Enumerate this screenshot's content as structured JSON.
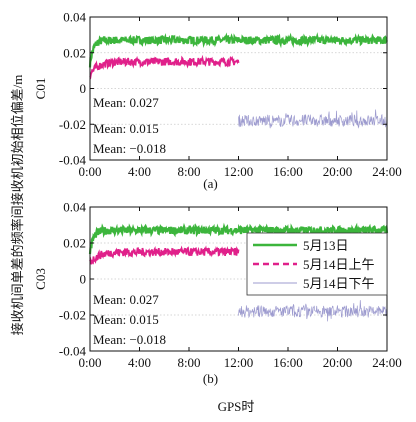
{
  "figure": {
    "shared_ylabel": "接收机间单差的频率间接收机初始相位偏差/m",
    "shared_xlabel": "GPS时"
  },
  "chart_data": [
    {
      "type": "line",
      "panel_label": "(a)",
      "ylabel": "C01",
      "xlabel": "",
      "x_ticks": [
        "0:00",
        "4:00",
        "8:00",
        "12:00",
        "16:00",
        "20:00",
        "24:00"
      ],
      "y_ticks": [
        "0.04",
        "0.02",
        "0",
        "-0.02",
        "-0.04"
      ],
      "xlim_hours": [
        0,
        24
      ],
      "ylim": [
        -0.04,
        0.04
      ],
      "grid": "horizontal-dotted",
      "annotations": [
        "Mean: 0.027",
        "Mean: 0.015",
        "Mean: −0.018"
      ],
      "series": [
        {
          "name": "5月13日",
          "color": "#3cb53c",
          "x_range_hours": [
            0,
            24
          ],
          "mean": 0.027,
          "initial": 0.014,
          "converge_hours": 0.6
        },
        {
          "name": "5月14日上午",
          "color": "#e0208a",
          "x_range_hours": [
            0,
            12
          ],
          "mean": 0.015,
          "initial": 0.008,
          "converge_hours": 1.5
        },
        {
          "name": "5月14日下午",
          "color": "#9d9bcf",
          "x_range_hours": [
            12,
            24
          ],
          "mean": -0.018,
          "initial": -0.018,
          "converge_hours": 0
        }
      ]
    },
    {
      "type": "line",
      "panel_label": "(b)",
      "ylabel": "C03",
      "xlabel": "GPS时",
      "x_ticks": [
        "0:00",
        "4:00",
        "8:00",
        "12:00",
        "16:00",
        "20:00",
        "24:00"
      ],
      "y_ticks": [
        "0.04",
        "0.02",
        "0",
        "-0.02",
        "-0.04"
      ],
      "xlim_hours": [
        0,
        24
      ],
      "ylim": [
        -0.04,
        0.04
      ],
      "grid": "horizontal-dotted",
      "legend": {
        "placement": "right",
        "entries": [
          "5月13日",
          "5月14日上午",
          "5月14日下午"
        ]
      },
      "annotations": [
        "Mean: 0.027",
        "Mean: 0.015",
        "Mean: −0.018"
      ],
      "series": [
        {
          "name": "5月13日",
          "color": "#3cb53c",
          "x_range_hours": [
            0,
            24
          ],
          "mean": 0.027,
          "initial": 0.015,
          "converge_hours": 0.6
        },
        {
          "name": "5月14日上午",
          "color": "#e0208a",
          "x_range_hours": [
            0,
            12
          ],
          "mean": 0.015,
          "initial": 0.009,
          "converge_hours": 1.5
        },
        {
          "name": "5月14日下午",
          "color": "#9d9bcf",
          "x_range_hours": [
            12,
            24
          ],
          "mean": -0.018,
          "initial": -0.018,
          "converge_hours": 0
        }
      ]
    }
  ]
}
